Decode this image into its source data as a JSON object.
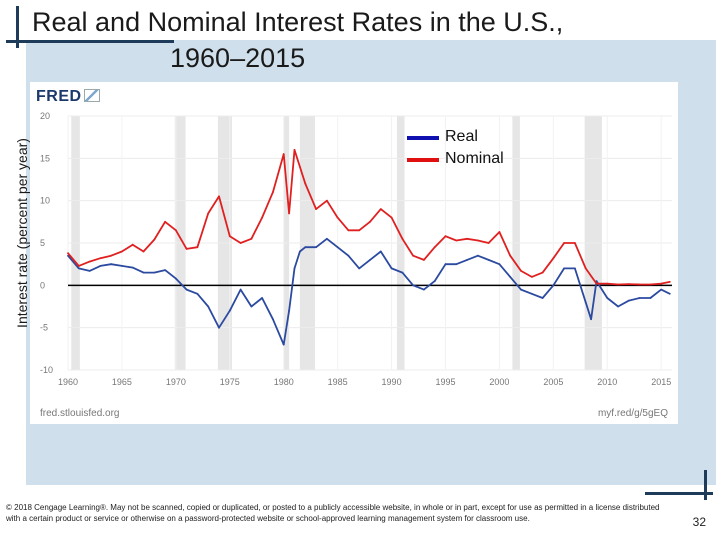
{
  "slide": {
    "title_line1": "Real and Nominal Interest Rates in the U.S.,",
    "title_line2": "1960–2015",
    "copyright": "© 2018 Cengage Learning®. May not be scanned, copied or duplicated, or posted to a publicly accessible website, in whole or in part, except for use as permitted in a license distributed with a certain product or service or otherwise on a password-protected website or school-approved learning management system for classroom use.",
    "page_number": "32"
  },
  "fred": {
    "logo_text": "FRED",
    "source_left": "fred.stlouisfed.org",
    "source_right": "myf.red/g/5gEQ"
  },
  "colors": {
    "real": "#2b4aa0",
    "nominal": "#e02020",
    "recession": "#e6e6e6",
    "deco": "#1f3b5a",
    "legend_real": "#1010b0",
    "legend_nominal": "#e01010"
  },
  "chart_data": {
    "type": "line",
    "ylabel": "Interest rate (percent per year)",
    "xlabel": "",
    "xlim": [
      1960,
      2016
    ],
    "ylim": [
      -10,
      20
    ],
    "x_ticks": [
      1960,
      1965,
      1970,
      1975,
      1980,
      1985,
      1990,
      1995,
      2000,
      2005,
      2010,
      2015
    ],
    "y_ticks": [
      -10,
      -5,
      0,
      5,
      10,
      15,
      20
    ],
    "reference_line_y": 0,
    "recession_bands": [
      [
        1960.3,
        1961.1
      ],
      [
        1969.9,
        1970.9
      ],
      [
        1973.9,
        1975.2
      ],
      [
        1980.0,
        1980.5
      ],
      [
        1981.5,
        1982.9
      ],
      [
        1990.5,
        1991.2
      ],
      [
        2001.2,
        2001.9
      ],
      [
        2007.9,
        2009.5
      ]
    ],
    "legend": [
      {
        "label": "Real",
        "series": "real"
      },
      {
        "label": "Nominal",
        "series": "nominal"
      }
    ],
    "series": [
      {
        "name": "Real",
        "key": "real",
        "points": [
          [
            1960,
            3.5
          ],
          [
            1961,
            2.0
          ],
          [
            1962,
            1.7
          ],
          [
            1963,
            2.3
          ],
          [
            1964,
            2.5
          ],
          [
            1965,
            2.3
          ],
          [
            1966,
            2.1
          ],
          [
            1967,
            1.5
          ],
          [
            1968,
            1.5
          ],
          [
            1969,
            1.8
          ],
          [
            1970,
            0.8
          ],
          [
            1971,
            -0.5
          ],
          [
            1972,
            -1.0
          ],
          [
            1973,
            -2.5
          ],
          [
            1974,
            -5.0
          ],
          [
            1975,
            -3.0
          ],
          [
            1976,
            -0.5
          ],
          [
            1977,
            -2.5
          ],
          [
            1978,
            -1.5
          ],
          [
            1979,
            -4.0
          ],
          [
            1980,
            -7.0
          ],
          [
            1980.5,
            -3.0
          ],
          [
            1981,
            2.0
          ],
          [
            1981.5,
            4.0
          ],
          [
            1982,
            4.5
          ],
          [
            1983,
            4.5
          ],
          [
            1984,
            5.5
          ],
          [
            1985,
            4.5
          ],
          [
            1986,
            3.5
          ],
          [
            1987,
            2.0
          ],
          [
            1988,
            3.0
          ],
          [
            1989,
            4.0
          ],
          [
            1990,
            2.0
          ],
          [
            1991,
            1.5
          ],
          [
            1992,
            0.0
          ],
          [
            1993,
            -0.5
          ],
          [
            1994,
            0.5
          ],
          [
            1995,
            2.5
          ],
          [
            1996,
            2.5
          ],
          [
            1997,
            3.0
          ],
          [
            1998,
            3.5
          ],
          [
            1999,
            3.0
          ],
          [
            2000,
            2.5
          ],
          [
            2001,
            1.0
          ],
          [
            2002,
            -0.5
          ],
          [
            2003,
            -1.0
          ],
          [
            2004,
            -1.5
          ],
          [
            2005,
            0.0
          ],
          [
            2006,
            2.0
          ],
          [
            2007,
            2.0
          ],
          [
            2008,
            -2.0
          ],
          [
            2008.5,
            -4.0
          ],
          [
            2009,
            0.5
          ],
          [
            2010,
            -1.5
          ],
          [
            2011,
            -2.5
          ],
          [
            2012,
            -1.8
          ],
          [
            2013,
            -1.5
          ],
          [
            2014,
            -1.5
          ],
          [
            2015,
            -0.5
          ],
          [
            2015.8,
            -1.0
          ]
        ]
      },
      {
        "name": "Nominal",
        "key": "nominal",
        "points": [
          [
            1960,
            3.8
          ],
          [
            1961,
            2.3
          ],
          [
            1962,
            2.8
          ],
          [
            1963,
            3.2
          ],
          [
            1964,
            3.5
          ],
          [
            1965,
            4.0
          ],
          [
            1966,
            4.8
          ],
          [
            1967,
            4.0
          ],
          [
            1968,
            5.4
          ],
          [
            1969,
            7.5
          ],
          [
            1970,
            6.5
          ],
          [
            1971,
            4.3
          ],
          [
            1972,
            4.5
          ],
          [
            1973,
            8.5
          ],
          [
            1974,
            10.5
          ],
          [
            1975,
            5.8
          ],
          [
            1976,
            5.0
          ],
          [
            1977,
            5.5
          ],
          [
            1978,
            8.0
          ],
          [
            1979,
            11.0
          ],
          [
            1980,
            15.5
          ],
          [
            1980.5,
            8.5
          ],
          [
            1981,
            16.0
          ],
          [
            1982,
            12.0
          ],
          [
            1983,
            9.0
          ],
          [
            1984,
            10.0
          ],
          [
            1985,
            8.0
          ],
          [
            1986,
            6.5
          ],
          [
            1987,
            6.5
          ],
          [
            1988,
            7.5
          ],
          [
            1989,
            9.0
          ],
          [
            1990,
            8.0
          ],
          [
            1991,
            5.5
          ],
          [
            1992,
            3.5
          ],
          [
            1993,
            3.0
          ],
          [
            1994,
            4.5
          ],
          [
            1995,
            5.8
          ],
          [
            1996,
            5.3
          ],
          [
            1997,
            5.5
          ],
          [
            1998,
            5.3
          ],
          [
            1999,
            5.0
          ],
          [
            2000,
            6.3
          ],
          [
            2001,
            3.5
          ],
          [
            2002,
            1.7
          ],
          [
            2003,
            1.0
          ],
          [
            2004,
            1.5
          ],
          [
            2005,
            3.2
          ],
          [
            2006,
            5.0
          ],
          [
            2007,
            5.0
          ],
          [
            2008,
            2.0
          ],
          [
            2009,
            0.2
          ],
          [
            2010,
            0.2
          ],
          [
            2011,
            0.1
          ],
          [
            2012,
            0.15
          ],
          [
            2013,
            0.1
          ],
          [
            2014,
            0.1
          ],
          [
            2015,
            0.2
          ],
          [
            2015.8,
            0.4
          ]
        ]
      }
    ]
  }
}
